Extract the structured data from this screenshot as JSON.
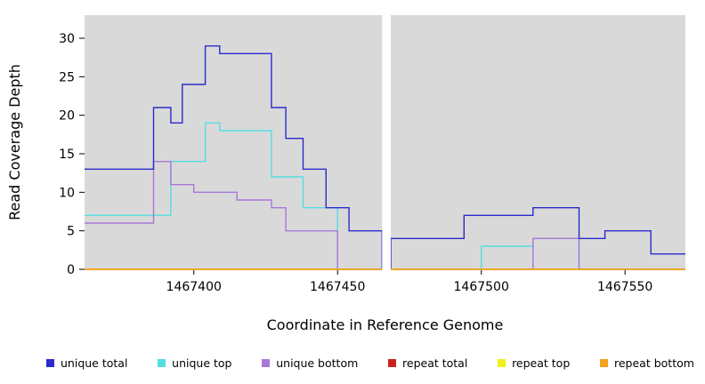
{
  "figure": {
    "background": "#ffffff",
    "plot_background": "#d9d9d9",
    "gap_color": "#ffffff",
    "axis_color": "#000000"
  },
  "chart_data": {
    "type": "line",
    "step": true,
    "title": "",
    "xlabel": "Coordinate in Reference Genome",
    "ylabel": "Read Coverage Depth",
    "xlim": [
      1467362,
      1467571
    ],
    "ylim": [
      0,
      33
    ],
    "x_ticks": [
      1467400,
      1467450,
      1467500,
      1467550
    ],
    "y_ticks": [
      0,
      5,
      10,
      15,
      20,
      25,
      30
    ],
    "grid": false,
    "legend_position": "bottom",
    "gap_region": {
      "x_start": 1467465.5,
      "x_end": 1467468.5
    },
    "draw_order": [
      1,
      2,
      0,
      3,
      4,
      5
    ],
    "series": [
      {
        "name": "unique total",
        "color": "#2b2bcd",
        "points": [
          [
            1467362,
            13
          ],
          [
            1467386,
            21
          ],
          [
            1467392,
            19
          ],
          [
            1467396,
            24
          ],
          [
            1467404,
            29
          ],
          [
            1467409,
            28
          ],
          [
            1467427,
            21
          ],
          [
            1467432,
            17
          ],
          [
            1467438,
            13
          ],
          [
            1467446,
            8
          ],
          [
            1467454,
            5
          ],
          [
            1467465.5,
            0
          ],
          [
            1467468.5,
            4
          ],
          [
            1467494,
            7
          ],
          [
            1467518,
            8
          ],
          [
            1467534,
            4
          ],
          [
            1467543,
            5
          ],
          [
            1467559,
            2
          ],
          [
            1467571,
            2
          ]
        ]
      },
      {
        "name": "unique top",
        "color": "#55dde2",
        "points": [
          [
            1467362,
            7
          ],
          [
            1467392,
            14
          ],
          [
            1467404,
            19
          ],
          [
            1467409,
            18
          ],
          [
            1467427,
            12
          ],
          [
            1467438,
            8
          ],
          [
            1467450,
            0
          ],
          [
            1467500,
            3
          ],
          [
            1467518,
            4
          ],
          [
            1467534,
            0
          ],
          [
            1467571,
            0
          ]
        ]
      },
      {
        "name": "unique bottom",
        "color": "#a878d8",
        "points": [
          [
            1467362,
            6
          ],
          [
            1467386,
            14
          ],
          [
            1467392,
            11
          ],
          [
            1467400,
            10
          ],
          [
            1467415,
            9
          ],
          [
            1467427,
            8
          ],
          [
            1467432,
            5
          ],
          [
            1467450,
            0
          ],
          [
            1467518,
            4
          ],
          [
            1467534,
            0
          ],
          [
            1467571,
            0
          ]
        ]
      },
      {
        "name": "repeat total",
        "color": "#cc2020",
        "points": [
          [
            1467362,
            0
          ],
          [
            1467571,
            0
          ]
        ]
      },
      {
        "name": "repeat top",
        "color": "#f0f020",
        "points": [
          [
            1467362,
            0
          ],
          [
            1467571,
            0
          ]
        ]
      },
      {
        "name": "repeat bottom",
        "color": "#f5a11e",
        "points": [
          [
            1467362,
            0
          ],
          [
            1467571,
            0
          ]
        ]
      }
    ]
  }
}
